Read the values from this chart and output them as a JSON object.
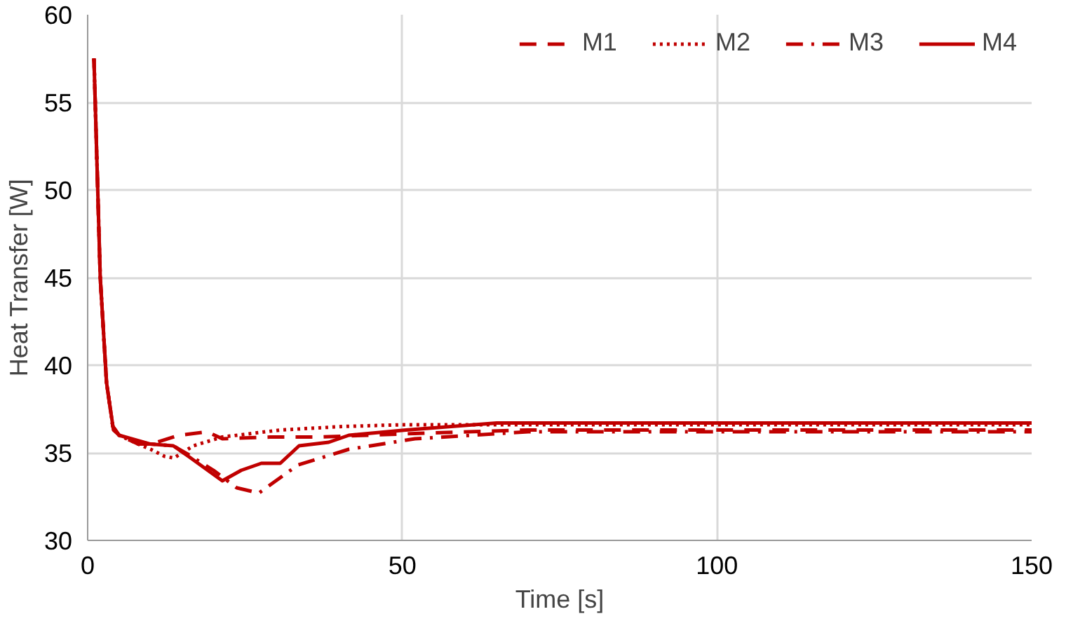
{
  "chart_data": {
    "type": "line",
    "xlabel": "Time [s]",
    "ylabel": "Heat Transfer [W]",
    "xlim": [
      0,
      150
    ],
    "ylim": [
      30,
      60
    ],
    "xticks": [
      0,
      50,
      100,
      150
    ],
    "yticks": [
      30,
      35,
      40,
      45,
      50,
      55,
      60
    ],
    "grid": true,
    "legend": "top right",
    "series": [
      {
        "name": "M1",
        "color": "#c00000",
        "line_style": "dashed",
        "x": [
          1,
          2,
          3,
          4,
          5,
          8,
          11,
          14.5,
          19,
          21.4,
          29,
          36.8,
          52,
          70,
          150
        ],
        "values": [
          57.5,
          45,
          39,
          36.5,
          36,
          35.5,
          35.6,
          36,
          36.2,
          35.8,
          35.9,
          35.9,
          36.1,
          36.3,
          36.3
        ]
      },
      {
        "name": "M2",
        "color": "#c00000",
        "line_style": "dotted",
        "x": [
          1,
          2,
          3,
          4,
          5,
          8,
          10,
          12.2,
          13.7,
          16.8,
          21.4,
          30.6,
          40.5,
          50,
          70,
          150
        ],
        "values": [
          57.5,
          45,
          39,
          36.5,
          36,
          35.5,
          35.2,
          34.8,
          34.7,
          35.4,
          35.9,
          36.3,
          36.5,
          36.6,
          36.6,
          36.6
        ]
      },
      {
        "name": "M3",
        "color": "#c00000",
        "line_style": "dashdot",
        "x": [
          1,
          2,
          3,
          4,
          5,
          8,
          10,
          13.6,
          16,
          20,
          23.7,
          27.2,
          33.4,
          41.5,
          52,
          70,
          150
        ],
        "values": [
          57.5,
          45,
          39,
          36.5,
          36,
          35.5,
          35.5,
          35.4,
          34.9,
          34,
          33,
          32.7,
          34.3,
          35.2,
          35.8,
          36.2,
          36.2
        ]
      },
      {
        "name": "M4",
        "color": "#c00000",
        "line_style": "solid",
        "x": [
          1,
          2,
          3,
          4.1,
          5,
          9.9,
          13.6,
          16,
          21.4,
          24.4,
          27.6,
          30.6,
          33.6,
          38.3,
          41.5,
          50.6,
          65,
          150
        ],
        "values": [
          57.5,
          45,
          39,
          36.3,
          36,
          35.5,
          35.4,
          34.8,
          33.4,
          34,
          34.4,
          34.4,
          35.4,
          35.6,
          36,
          36.3,
          36.7,
          36.7
        ]
      }
    ]
  }
}
